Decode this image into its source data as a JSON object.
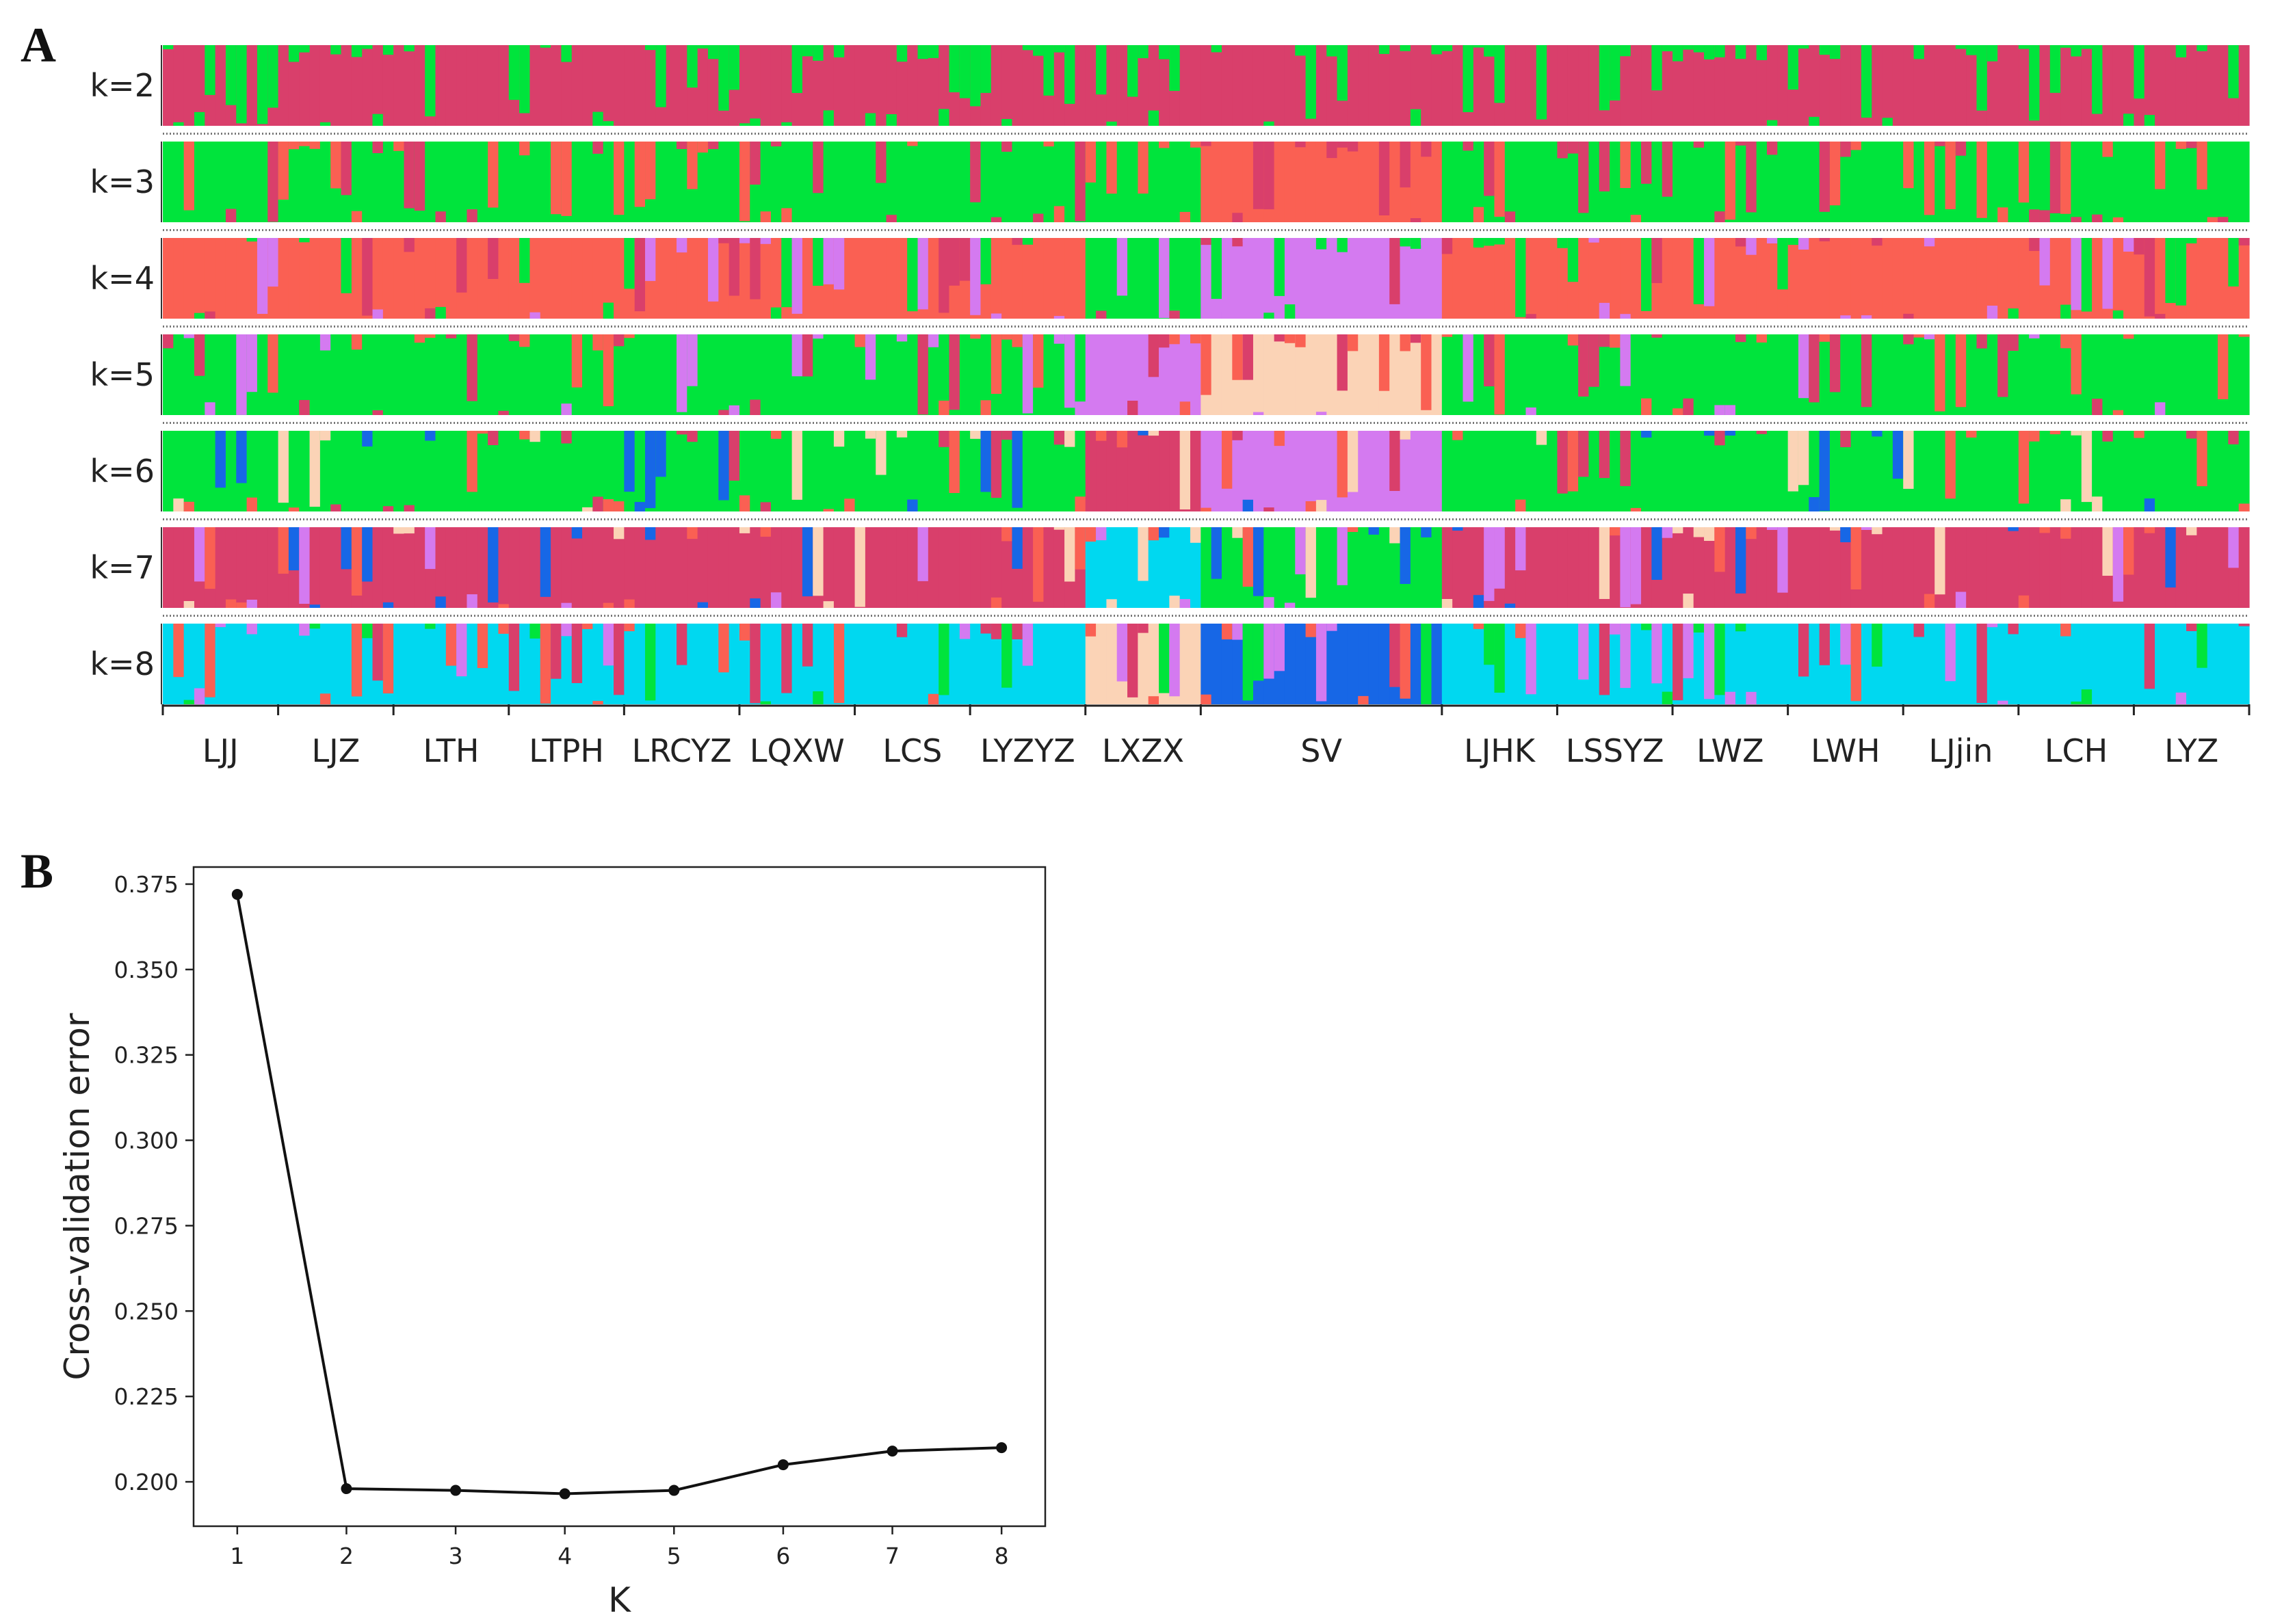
{
  "panels": {
    "a": "A",
    "b": "B"
  },
  "chart_data": [
    {
      "type": "bar",
      "subtype": "stacked-admixture",
      "panel": "A",
      "title": "",
      "k_rows": [
        "k=2",
        "k=3",
        "k=4",
        "k=5",
        "k=6",
        "k=7",
        "k=8"
      ],
      "populations": [
        {
          "name": "LJJ",
          "n": 11
        },
        {
          "name": "LJZ",
          "n": 11
        },
        {
          "name": "LTH",
          "n": 11
        },
        {
          "name": "LTPH",
          "n": 11
        },
        {
          "name": "LRCYZ",
          "n": 11
        },
        {
          "name": "LQXW",
          "n": 11
        },
        {
          "name": "LCS",
          "n": 11
        },
        {
          "name": "LYZYZ",
          "n": 11
        },
        {
          "name": "LXZX",
          "n": 11
        },
        {
          "name": "SV",
          "n": 23
        },
        {
          "name": "LJHK",
          "n": 11
        },
        {
          "name": "LSSYZ",
          "n": 11
        },
        {
          "name": "LWZ",
          "n": 11
        },
        {
          "name": "LWH",
          "n": 11
        },
        {
          "name": "LJjin",
          "n": 11
        },
        {
          "name": "LCH",
          "n": 11
        },
        {
          "name": "LYZ",
          "n": 11
        }
      ],
      "colors": {
        "crimson": "#D93F6B",
        "green": "#00E43C",
        "salmon": "#FA6053",
        "orchid": "#D47AF0",
        "peach": "#FBD3B6",
        "blue": "#1767E6",
        "cyan": "#00D8F0"
      },
      "rows": [
        {
          "label": "k=2",
          "dominant": "crimson",
          "minor": [
            "green"
          ],
          "overrides": {
            "SV": "crimson"
          }
        },
        {
          "label": "k=3",
          "dominant": "green",
          "minor": [
            "salmon",
            "crimson"
          ],
          "overrides": {
            "SV": "salmon"
          }
        },
        {
          "label": "k=4",
          "dominant": "salmon",
          "minor": [
            "orchid",
            "green",
            "crimson"
          ],
          "overrides": {
            "SV": "orchid",
            "LXZX": "green"
          }
        },
        {
          "label": "k=5",
          "dominant": "green",
          "minor": [
            "salmon",
            "orchid",
            "crimson"
          ],
          "overrides": {
            "SV": "peach",
            "LXZX": "orchid"
          }
        },
        {
          "label": "k=6",
          "dominant": "green",
          "minor": [
            "peach",
            "blue",
            "salmon",
            "crimson"
          ],
          "overrides": {
            "SV": "orchid",
            "LXZX": "crimson"
          }
        },
        {
          "label": "k=7",
          "dominant": "crimson",
          "minor": [
            "orchid",
            "blue",
            "salmon",
            "peach"
          ],
          "overrides": {
            "SV": "green",
            "LXZX": "cyan"
          }
        },
        {
          "label": "k=8",
          "dominant": "cyan",
          "minor": [
            "green",
            "crimson",
            "orchid",
            "salmon"
          ],
          "overrides": {
            "SV": "blue",
            "LXZX": "peach"
          }
        }
      ],
      "ylim": [
        0,
        1
      ]
    },
    {
      "type": "line",
      "panel": "B",
      "title": "",
      "x": [
        1,
        2,
        3,
        4,
        5,
        6,
        7,
        8
      ],
      "y": [
        0.372,
        0.198,
        0.1975,
        0.1965,
        0.1975,
        0.205,
        0.209,
        0.21
      ],
      "xlabel": "K",
      "ylabel": "Cross-validation error",
      "xlim": [
        0.6,
        8.4
      ],
      "ylim": [
        0.187,
        0.38
      ],
      "xticks": [
        1,
        2,
        3,
        4,
        5,
        6,
        7,
        8
      ],
      "yticks": [
        0.2,
        0.225,
        0.25,
        0.275,
        0.3,
        0.325,
        0.35,
        0.375
      ],
      "ytick_labels": [
        "0.200",
        "0.225",
        "0.250",
        "0.275",
        "0.300",
        "0.325",
        "0.350",
        "0.375"
      ],
      "line_color": "#111111",
      "grid": false
    }
  ]
}
